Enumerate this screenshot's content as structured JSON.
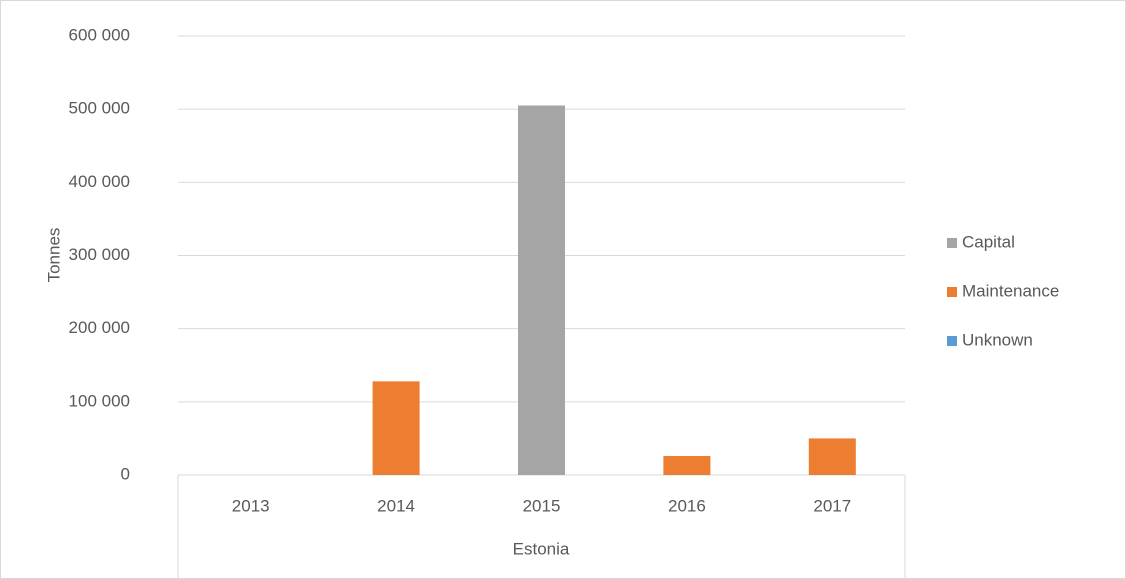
{
  "chart_data": {
    "type": "bar",
    "stacked": true,
    "y_label": "Tonnes",
    "group_label": "Estonia",
    "categories": [
      "2013",
      "2014",
      "2015",
      "2016",
      "2017"
    ],
    "series": [
      {
        "name": "Capital",
        "color": "#a5a5a5",
        "values": [
          0,
          0,
          505000,
          0,
          0
        ]
      },
      {
        "name": "Maintenance",
        "color": "#ed7d31",
        "values": [
          0,
          128000,
          0,
          26000,
          50000
        ]
      },
      {
        "name": "Unknown",
        "color": "#5b9bd5",
        "values": [
          0,
          0,
          0,
          0,
          0
        ]
      }
    ],
    "ylim": [
      0,
      600000
    ],
    "yticks": [
      0,
      {
        "value": 100000,
        "label": "100 000"
      },
      {
        "value": 200000,
        "label": "200 000"
      },
      {
        "value": 300000,
        "label": "300 000"
      },
      {
        "value": 400000,
        "label": "400 000"
      },
      {
        "value": 500000,
        "label": "500 000"
      },
      {
        "value": 600000,
        "label": "600 000"
      }
    ],
    "grid": true,
    "legend": "right"
  }
}
